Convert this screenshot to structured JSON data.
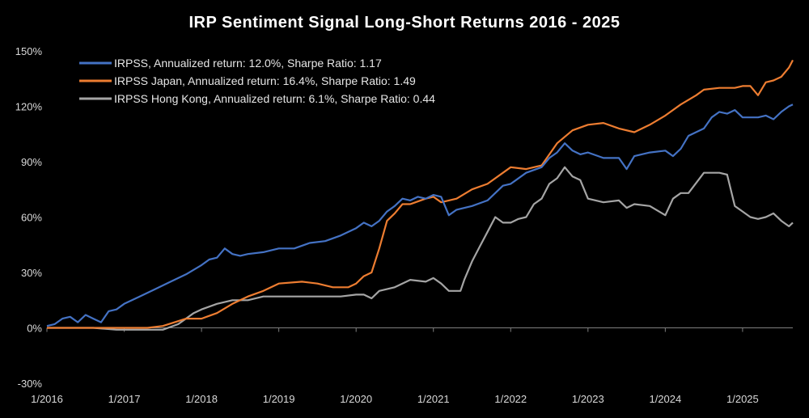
{
  "chart_data": {
    "type": "line",
    "title": "IRP Sentiment Signal Long-Short Returns 2016 - 2025",
    "xlabel": "",
    "ylabel": "",
    "ylim": [
      -30,
      150
    ],
    "y_ticks": [
      -30,
      0,
      30,
      60,
      90,
      120,
      150
    ],
    "y_tick_labels": [
      "-30%",
      "0%",
      "30%",
      "60%",
      "90%",
      "120%",
      "150%"
    ],
    "x_ticks": [
      2016,
      2017,
      2018,
      2019,
      2020,
      2021,
      2022,
      2023,
      2024,
      2025
    ],
    "x_tick_labels": [
      "1/2016",
      "1/2017",
      "1/2018",
      "1/2019",
      "1/2020",
      "1/2021",
      "1/2022",
      "1/2023",
      "1/2024",
      "1/2025"
    ],
    "xlim": [
      2016.0,
      2025.65
    ],
    "grid": false,
    "legend_position": "top-left",
    "series": [
      {
        "name": "IRPSS, Annualized return: 12.0%, Sharpe Ratio: 1.17",
        "color": "#4472C4",
        "x": [
          2016.0,
          2016.1,
          2016.2,
          2016.3,
          2016.4,
          2016.5,
          2016.6,
          2016.7,
          2016.8,
          2016.9,
          2017.0,
          2017.2,
          2017.4,
          2017.6,
          2017.8,
          2018.0,
          2018.1,
          2018.2,
          2018.3,
          2018.4,
          2018.5,
          2018.6,
          2018.8,
          2019.0,
          2019.2,
          2019.4,
          2019.6,
          2019.8,
          2020.0,
          2020.1,
          2020.2,
          2020.3,
          2020.4,
          2020.5,
          2020.6,
          2020.7,
          2020.8,
          2020.9,
          2021.0,
          2021.1,
          2021.2,
          2021.3,
          2021.5,
          2021.7,
          2021.9,
          2022.0,
          2022.2,
          2022.4,
          2022.5,
          2022.6,
          2022.7,
          2022.8,
          2022.9,
          2023.0,
          2023.2,
          2023.4,
          2023.5,
          2023.6,
          2023.8,
          2024.0,
          2024.1,
          2024.2,
          2024.3,
          2024.5,
          2024.6,
          2024.7,
          2024.8,
          2024.9,
          2025.0,
          2025.2,
          2025.3,
          2025.4,
          2025.5,
          2025.6,
          2025.65
        ],
        "values": [
          1,
          2,
          5,
          6,
          3,
          7,
          5,
          3,
          9,
          10,
          13,
          17,
          21,
          25,
          29,
          34,
          37,
          38,
          43,
          40,
          39,
          40,
          41,
          43,
          43,
          46,
          47,
          50,
          54,
          57,
          55,
          58,
          63,
          66,
          70,
          69,
          71,
          70,
          72,
          71,
          61,
          64,
          66,
          69,
          77,
          78,
          84,
          87,
          92,
          95,
          100,
          96,
          94,
          95,
          92,
          92,
          86,
          93,
          95,
          96,
          93,
          97,
          104,
          108,
          114,
          117,
          116,
          118,
          114,
          114,
          115,
          113,
          117,
          120,
          121
        ]
      },
      {
        "name": "IRPSS Japan, Annualized return: 16.4%, Sharpe Ratio: 1.49",
        "color": "#ED7D31",
        "x": [
          2016.0,
          2016.5,
          2017.0,
          2017.3,
          2017.5,
          2017.8,
          2018.0,
          2018.2,
          2018.4,
          2018.6,
          2018.8,
          2019.0,
          2019.3,
          2019.5,
          2019.7,
          2019.9,
          2020.0,
          2020.1,
          2020.2,
          2020.3,
          2020.4,
          2020.5,
          2020.6,
          2020.7,
          2020.9,
          2021.0,
          2021.1,
          2021.3,
          2021.5,
          2021.7,
          2021.9,
          2022.0,
          2022.2,
          2022.4,
          2022.6,
          2022.8,
          2023.0,
          2023.2,
          2023.4,
          2023.6,
          2023.8,
          2024.0,
          2024.2,
          2024.4,
          2024.5,
          2024.7,
          2024.9,
          2025.0,
          2025.1,
          2025.2,
          2025.3,
          2025.4,
          2025.5,
          2025.6,
          2025.65
        ],
        "values": [
          0,
          0,
          0,
          0,
          1,
          5,
          5,
          8,
          13,
          17,
          20,
          24,
          25,
          24,
          22,
          22,
          24,
          28,
          30,
          43,
          58,
          62,
          67,
          67,
          70,
          71,
          68,
          70,
          75,
          78,
          84,
          87,
          86,
          88,
          100,
          107,
          110,
          111,
          108,
          106,
          110,
          115,
          121,
          126,
          129,
          130,
          130,
          131,
          131,
          126,
          133,
          134,
          136,
          141,
          145
        ]
      },
      {
        "name": "IRPSS Hong Kong, Annualized return: 6.1%, Sharpe Ratio: 0.44",
        "color": "#A5A5A5",
        "x": [
          2016.0,
          2016.3,
          2016.6,
          2016.9,
          2017.0,
          2017.2,
          2017.3,
          2017.5,
          2017.7,
          2017.9,
          2018.0,
          2018.2,
          2018.4,
          2018.6,
          2018.8,
          2019.0,
          2019.2,
          2019.5,
          2019.8,
          2020.0,
          2020.1,
          2020.2,
          2020.3,
          2020.5,
          2020.7,
          2020.9,
          2021.0,
          2021.1,
          2021.2,
          2021.35,
          2021.4,
          2021.5,
          2021.6,
          2021.7,
          2021.8,
          2021.9,
          2022.0,
          2022.1,
          2022.2,
          2022.3,
          2022.4,
          2022.5,
          2022.6,
          2022.7,
          2022.8,
          2022.9,
          2023.0,
          2023.2,
          2023.4,
          2023.5,
          2023.6,
          2023.8,
          2024.0,
          2024.1,
          2024.2,
          2024.3,
          2024.5,
          2024.7,
          2024.8,
          2024.9,
          2025.0,
          2025.1,
          2025.2,
          2025.3,
          2025.4,
          2025.5,
          2025.6,
          2025.65
        ],
        "values": [
          0,
          0,
          0,
          -1,
          -1,
          -1,
          -1,
          -1,
          2,
          8,
          10,
          13,
          15,
          15,
          17,
          17,
          17,
          17,
          17,
          18,
          18,
          16,
          20,
          22,
          26,
          25,
          27,
          24,
          20,
          20,
          26,
          36,
          44,
          52,
          60,
          57,
          57,
          59,
          60,
          67,
          70,
          78,
          81,
          87,
          82,
          80,
          70,
          68,
          69,
          65,
          67,
          66,
          61,
          70,
          73,
          73,
          84,
          84,
          83,
          66,
          63,
          60,
          59,
          60,
          62,
          58,
          55,
          57
        ]
      }
    ]
  }
}
